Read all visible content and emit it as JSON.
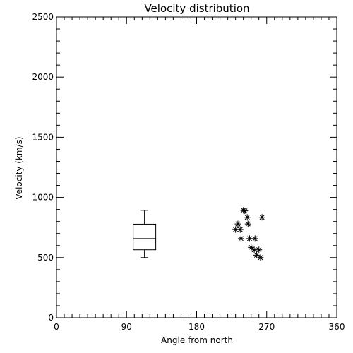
{
  "chart_data": {
    "type": "scatter",
    "title": "Velocity distribution",
    "xlabel": "Angle from north",
    "ylabel": "Velocity (km/s)",
    "xlim": [
      0,
      360
    ],
    "ylim": [
      0,
      2500
    ],
    "x_ticks": [
      0,
      90,
      180,
      270,
      360
    ],
    "y_ticks": [
      0,
      500,
      1000,
      1500,
      2000,
      2500
    ],
    "grid": false,
    "marker": "asterisk",
    "box": {
      "x": 113,
      "min": 500,
      "q1": 565,
      "median": 658,
      "q3": 778,
      "max": 893
    },
    "points": [
      {
        "x": 240,
        "y": 893
      },
      {
        "x": 242,
        "y": 888
      },
      {
        "x": 245,
        "y": 835
      },
      {
        "x": 264,
        "y": 835
      },
      {
        "x": 233,
        "y": 780
      },
      {
        "x": 246,
        "y": 780
      },
      {
        "x": 230,
        "y": 733
      },
      {
        "x": 236,
        "y": 733
      },
      {
        "x": 237,
        "y": 658
      },
      {
        "x": 248,
        "y": 658
      },
      {
        "x": 255,
        "y": 658
      },
      {
        "x": 250,
        "y": 585
      },
      {
        "x": 254,
        "y": 565
      },
      {
        "x": 260,
        "y": 565
      },
      {
        "x": 257,
        "y": 520
      },
      {
        "x": 262,
        "y": 500
      }
    ]
  }
}
